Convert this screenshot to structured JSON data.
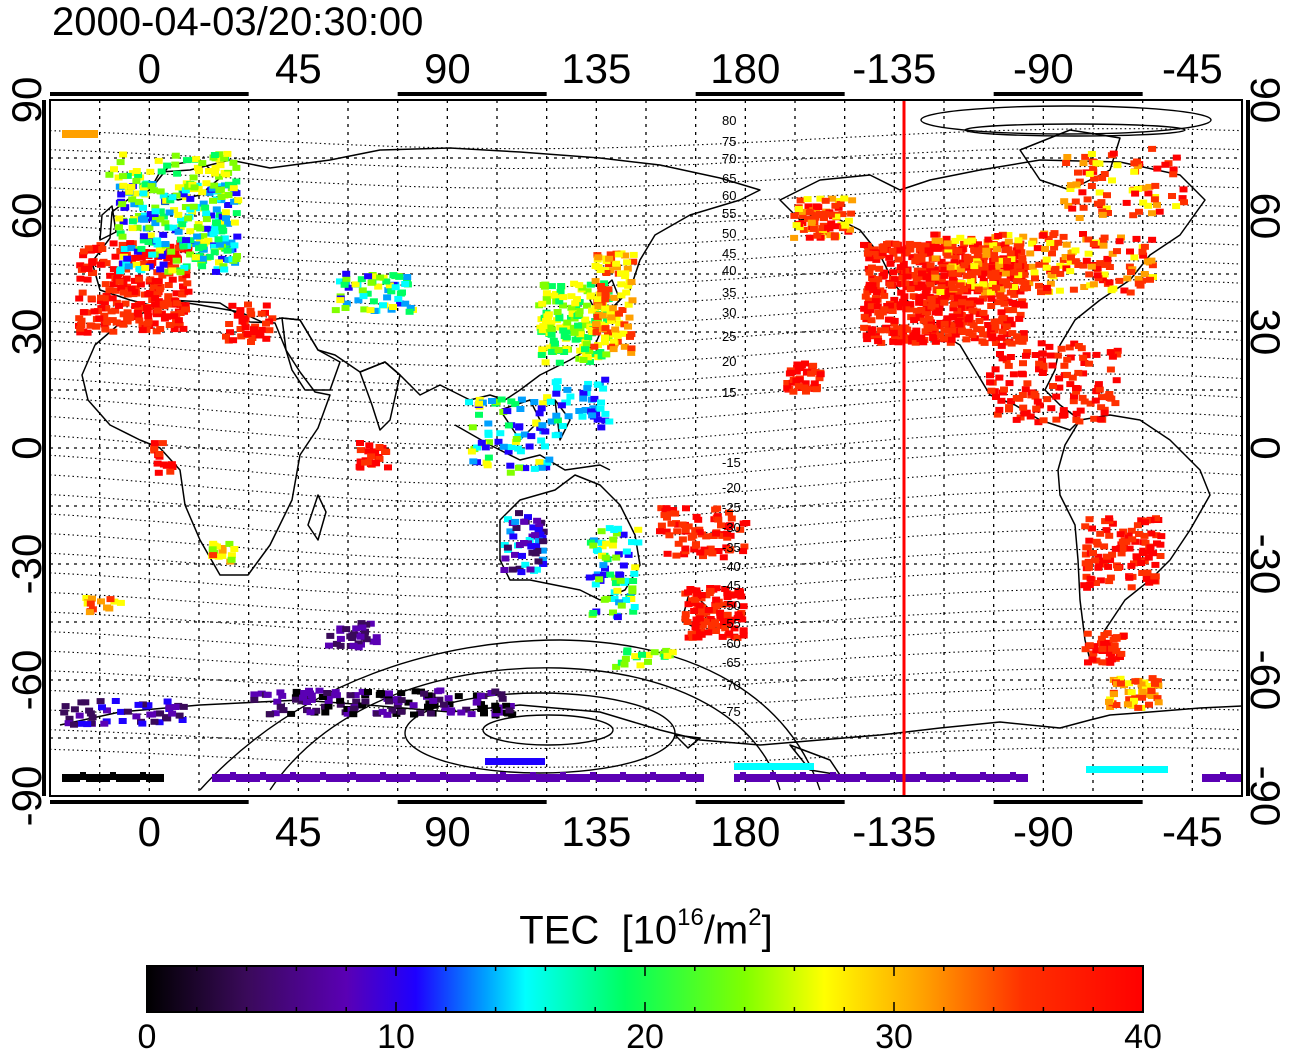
{
  "title": "2000-04-03/20:30:00",
  "map": {
    "longitude_ticks": [
      "0",
      "45",
      "90",
      "135",
      "180",
      "-135",
      "-90",
      "-45"
    ],
    "latitude_ticks": [
      "90",
      "60",
      "30",
      "0",
      "-30",
      "-60",
      "-90"
    ],
    "magnetic_latitude_labels_north": [
      "80",
      "75",
      "70",
      "65",
      "60",
      "55",
      "50",
      "45",
      "40",
      "35",
      "30",
      "25",
      "20",
      "15"
    ],
    "magnetic_latitude_labels_south": [
      "-15",
      "-20",
      "-25",
      "-30",
      "-35",
      "-40",
      "-45",
      "-50",
      "-55",
      "-60",
      "-65",
      "-70",
      "-75"
    ],
    "terminator_longitude": -128,
    "terminator_color": "#ff0000"
  },
  "colorbar": {
    "label_prefix": "TEC",
    "label_units": "[10",
    "label_exp1": "16",
    "label_mid": "/m",
    "label_exp2": "2",
    "label_end": "]",
    "ticks": [
      "0",
      "10",
      "20",
      "30",
      "40"
    ],
    "range": [
      0,
      40
    ],
    "colors": [
      "#000000",
      "#3a0a5a",
      "#5a00b4",
      "#1e00ff",
      "#00a0ff",
      "#00ffff",
      "#00ff60",
      "#80ff00",
      "#ffff00",
      "#ffa000",
      "#ff3000",
      "#ff0000"
    ]
  }
}
